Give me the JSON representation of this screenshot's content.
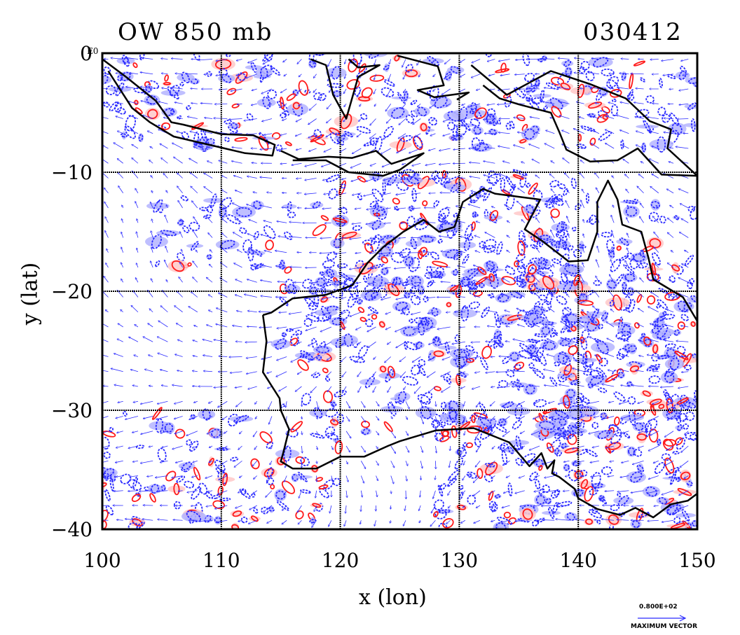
{
  "title": {
    "left": "OW 850 mb",
    "right": "030412"
  },
  "axes": {
    "xlabel": "x (lon)",
    "ylabel": "y (lat)",
    "xlim": [
      100,
      150
    ],
    "ylim": [
      -40,
      0
    ],
    "xticks": [
      "100",
      "110",
      "120",
      "130",
      "140",
      "150"
    ],
    "yticks": [
      "0",
      "−10",
      "−20",
      "−30",
      "−40"
    ],
    "corner_tag": "E0"
  },
  "vector_legend": {
    "magnitude": "0.800E+02",
    "caption": "MAXIMUM VECTOR"
  },
  "colors": {
    "positive_contour": "#ff1a1a",
    "negative_contour": "#2a2aff",
    "positive_fill": "#ffc8c8",
    "negative_fill": "#b4b4ff",
    "coast": "#000000",
    "grid": "#000000"
  },
  "chart_data": {
    "type": "heatmap",
    "title": "OW 850 mb",
    "date": "030412",
    "xlabel": "x (lon)",
    "ylabel": "y (lat)",
    "xlim": [
      100,
      150
    ],
    "ylim": [
      -40,
      0
    ],
    "grid": true,
    "fields": [
      "Okubo-Weiss parameter contours",
      "wind vectors"
    ]
  }
}
